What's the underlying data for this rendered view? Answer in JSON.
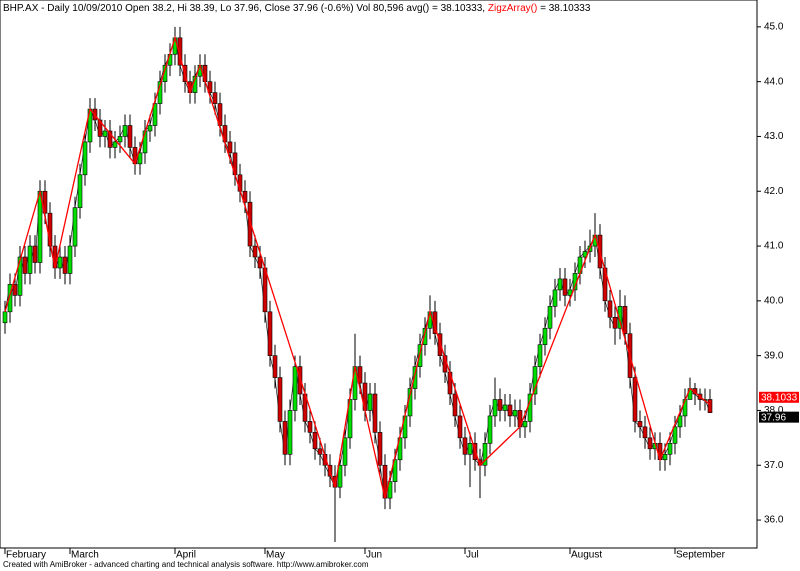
{
  "chart_data": {
    "type": "candlestick",
    "title": "BHP.AX - Daily 10/09/2010 Open 38.2, Hi 38.39, Lo 37.96, Close 37.96 (-0.6%) Vol 80,596 avg() = 38.10333,",
    "zigzag_title": "ZigzArray()",
    "zigzag_title_value": "= 38.10333",
    "footer": "Created with AmiBroker - advanced charting and technical analysis software. http://www.amibroker.com",
    "ylim": [
      35.49,
      45.49
    ],
    "yticks": [
      {
        "value": 36,
        "label": "36.0"
      },
      {
        "value": 37,
        "label": "37.0"
      },
      {
        "value": 38,
        "label": "38.0"
      },
      {
        "value": 39,
        "label": "39.0"
      },
      {
        "value": 40,
        "label": "40.0"
      },
      {
        "value": 41,
        "label": "41.0"
      },
      {
        "value": 42,
        "label": "42.0"
      },
      {
        "value": 43,
        "label": "43.0"
      },
      {
        "value": 44,
        "label": "44.0"
      },
      {
        "value": 45,
        "label": "45.0"
      }
    ],
    "categories": [
      "February",
      null,
      null,
      null,
      null,
      null,
      null,
      null,
      null,
      null,
      null,
      null,
      null,
      "March",
      null,
      null,
      null,
      null,
      null,
      null,
      null,
      null,
      null,
      null,
      null,
      null,
      null,
      null,
      null,
      null,
      null,
      null,
      null,
      null,
      "April",
      null,
      null,
      null,
      null,
      null,
      null,
      null,
      null,
      null,
      null,
      null,
      null,
      null,
      null,
      null,
      null,
      null,
      "May",
      null,
      null,
      null,
      null,
      null,
      null,
      null,
      null,
      null,
      null,
      null,
      null,
      null,
      null,
      null,
      null,
      null,
      null,
      null,
      "Jun",
      null,
      null,
      null,
      null,
      null,
      null,
      null,
      null,
      null,
      null,
      null,
      null,
      null,
      null,
      null,
      null,
      null,
      null,
      null,
      "Jul",
      null,
      null,
      null,
      null,
      null,
      null,
      null,
      null,
      null,
      null,
      null,
      null,
      null,
      null,
      null,
      null,
      null,
      null,
      null,
      null,
      "August",
      null,
      null,
      null,
      null,
      null,
      null,
      null,
      null,
      null,
      null,
      null,
      null,
      null,
      null,
      null,
      null,
      null,
      null,
      null,
      null,
      "September",
      null,
      null,
      null,
      null,
      null,
      null,
      null
    ],
    "up_color": "#00e000",
    "down_color": "#d00000",
    "open": [
      39.6,
      39.8,
      40.3,
      40.1,
      40.8,
      40.5,
      41.0,
      40.7,
      42.0,
      41.6,
      41.0,
      40.6,
      40.8,
      40.5,
      41.0,
      41.7,
      42.3,
      42.9,
      43.5,
      43.3,
      43.0,
      43.1,
      42.8,
      42.9,
      43.0,
      43.2,
      42.8,
      42.5,
      42.7,
      43.1,
      43.2,
      43.6,
      44.0,
      44.3,
      44.5,
      44.8,
      44.3,
      44.0,
      43.8,
      44.1,
      44.3,
      44.0,
      43.8,
      43.6,
      43.2,
      42.9,
      42.7,
      42.3,
      42.0,
      41.8,
      41.0,
      40.8,
      40.6,
      39.8,
      39.0,
      38.6,
      37.8,
      37.2,
      38.0,
      38.8,
      38.3,
      37.8,
      37.6,
      37.3,
      37.2,
      37.0,
      36.8,
      36.6,
      37.0,
      37.5,
      38.2,
      38.8,
      38.5,
      38.0,
      38.3,
      37.6,
      37.0,
      36.4,
      36.7,
      37.1,
      37.5,
      37.9,
      38.4,
      38.8,
      39.2,
      39.5,
      39.8,
      39.4,
      39.0,
      38.7,
      38.3,
      37.9,
      37.5,
      37.2,
      37.4,
      37.1,
      37.0,
      37.4,
      37.9,
      38.2,
      38.0,
      38.1,
      37.9,
      38.0,
      37.7,
      37.8,
      38.3,
      38.8,
      39.2,
      39.5,
      39.9,
      40.2,
      40.4,
      40.1,
      40.2,
      40.5,
      40.8,
      40.9,
      41.0,
      41.2,
      40.6,
      40.0,
      39.7,
      39.5,
      39.9,
      39.4,
      38.6,
      37.8,
      37.7,
      37.5,
      37.3,
      37.4,
      37.1,
      37.2,
      37.4,
      37.7,
      37.9,
      38.2,
      38.4,
      38.3,
      38.2,
      38.2
    ],
    "high": [
      40.0,
      40.5,
      40.5,
      41.0,
      41.0,
      41.2,
      41.2,
      42.2,
      42.2,
      41.8,
      41.2,
      41.0,
      41.0,
      41.2,
      41.9,
      42.5,
      43.1,
      43.7,
      43.7,
      43.5,
      43.3,
      43.3,
      43.1,
      43.2,
      43.4,
      43.4,
      43.0,
      42.9,
      43.3,
      43.4,
      43.8,
      44.2,
      44.5,
      44.7,
      45.0,
      45.0,
      44.5,
      44.2,
      44.3,
      44.5,
      44.5,
      44.2,
      44.0,
      43.8,
      43.4,
      43.1,
      42.9,
      42.5,
      42.2,
      42.0,
      41.2,
      41.0,
      40.8,
      40.0,
      39.2,
      38.8,
      38.0,
      38.2,
      39.0,
      39.0,
      38.5,
      38.0,
      37.8,
      37.5,
      37.4,
      37.2,
      37.0,
      37.2,
      37.7,
      38.4,
      39.4,
      39.0,
      38.7,
      38.5,
      38.5,
      37.8,
      37.2,
      36.9,
      37.3,
      37.7,
      38.1,
      38.6,
      39.0,
      39.4,
      39.7,
      40.1,
      40.0,
      39.6,
      39.2,
      38.9,
      38.5,
      38.1,
      37.7,
      37.6,
      37.6,
      37.3,
      37.6,
      38.1,
      38.6,
      38.4,
      38.3,
      38.3,
      38.2,
      38.2,
      38.0,
      38.5,
      39.0,
      39.4,
      39.7,
      40.1,
      40.4,
      40.6,
      40.6,
      40.4,
      40.7,
      41.0,
      41.1,
      41.3,
      41.6,
      41.4,
      40.8,
      40.2,
      39.9,
      40.2,
      40.1,
      39.6,
      38.8,
      38.0,
      37.9,
      37.7,
      37.6,
      37.6,
      37.4,
      37.6,
      37.9,
      38.1,
      38.4,
      38.6,
      38.5,
      38.4,
      38.4,
      38.39
    ],
    "low": [
      39.4,
      39.6,
      39.9,
      39.9,
      40.3,
      40.3,
      40.5,
      40.5,
      41.4,
      40.8,
      40.4,
      40.4,
      40.3,
      40.3,
      40.8,
      41.5,
      42.1,
      42.7,
      43.1,
      42.8,
      42.8,
      42.6,
      42.6,
      42.7,
      42.8,
      42.6,
      42.3,
      42.3,
      42.5,
      42.9,
      43.0,
      43.4,
      43.8,
      44.1,
      44.3,
      44.1,
      43.8,
      43.6,
      43.6,
      43.9,
      43.8,
      43.6,
      43.4,
      43.0,
      42.7,
      42.5,
      42.1,
      41.8,
      41.6,
      40.8,
      40.6,
      40.4,
      39.6,
      38.8,
      38.4,
      37.6,
      37.0,
      37.0,
      37.8,
      38.1,
      37.6,
      37.4,
      37.1,
      37.0,
      36.8,
      36.6,
      35.6,
      36.4,
      36.8,
      37.3,
      38.0,
      38.3,
      37.8,
      37.8,
      37.4,
      36.8,
      36.2,
      36.2,
      36.5,
      36.9,
      37.3,
      37.7,
      38.2,
      38.6,
      39.0,
      39.3,
      39.2,
      38.8,
      38.5,
      38.1,
      37.7,
      37.3,
      37.0,
      36.6,
      36.9,
      36.4,
      36.8,
      37.2,
      37.7,
      37.8,
      37.8,
      37.7,
      37.7,
      37.5,
      37.5,
      37.6,
      38.1,
      38.6,
      39.0,
      39.3,
      39.7,
      40.0,
      39.9,
      39.9,
      40.0,
      40.3,
      40.6,
      40.7,
      40.8,
      40.4,
      39.8,
      39.5,
      39.2,
      39.3,
      39.2,
      38.4,
      37.6,
      37.5,
      37.3,
      37.1,
      37.1,
      36.9,
      36.9,
      37.0,
      37.2,
      37.5,
      37.7,
      38.2,
      38.1,
      38.0,
      38.0,
      37.96
    ],
    "close": [
      39.8,
      40.3,
      40.1,
      40.8,
      40.5,
      41.0,
      40.7,
      42.0,
      41.6,
      41.0,
      40.6,
      40.8,
      40.5,
      41.0,
      41.7,
      42.3,
      42.9,
      43.5,
      43.3,
      43.0,
      43.1,
      42.8,
      42.9,
      43.0,
      43.2,
      42.8,
      42.5,
      42.7,
      43.1,
      43.2,
      43.6,
      44.0,
      44.3,
      44.5,
      44.8,
      44.3,
      44.0,
      43.8,
      44.1,
      44.3,
      44.0,
      43.8,
      43.6,
      43.2,
      42.9,
      42.7,
      42.3,
      42.0,
      41.8,
      41.0,
      40.8,
      40.6,
      39.8,
      39.0,
      38.6,
      37.8,
      37.2,
      38.0,
      38.8,
      38.3,
      37.8,
      37.6,
      37.3,
      37.2,
      37.0,
      36.8,
      36.6,
      37.0,
      37.5,
      38.2,
      38.8,
      38.5,
      38.0,
      38.3,
      37.6,
      37.0,
      36.4,
      36.7,
      37.1,
      37.5,
      37.9,
      38.4,
      38.8,
      39.2,
      39.5,
      39.8,
      39.4,
      39.0,
      38.7,
      38.3,
      37.9,
      37.5,
      37.2,
      37.4,
      37.1,
      37.0,
      37.4,
      37.9,
      38.2,
      38.0,
      38.1,
      37.9,
      38.0,
      37.7,
      37.8,
      38.3,
      38.8,
      39.2,
      39.5,
      39.9,
      40.2,
      40.4,
      40.1,
      40.2,
      40.5,
      40.8,
      40.9,
      41.0,
      41.2,
      40.6,
      40.0,
      39.7,
      39.5,
      39.9,
      39.4,
      38.6,
      37.8,
      37.7,
      37.5,
      37.3,
      37.4,
      37.1,
      37.2,
      37.4,
      37.7,
      37.9,
      38.2,
      38.4,
      38.3,
      38.2,
      38.2,
      37.96
    ],
    "zigzag": {
      "color": "#ff0000",
      "x": [
        0,
        7,
        10,
        17,
        26,
        34,
        37,
        39,
        66,
        70,
        76,
        85,
        95,
        103,
        118,
        131,
        137,
        141
      ],
      "values": [
        39.8,
        42.0,
        40.6,
        43.5,
        42.5,
        44.8,
        43.8,
        44.3,
        36.6,
        38.8,
        36.4,
        39.8,
        37.0,
        37.7,
        41.2,
        37.1,
        38.4,
        38.1033
      ]
    },
    "zigzag_last_label": "38.1033",
    "close_last_label": "37.96"
  }
}
